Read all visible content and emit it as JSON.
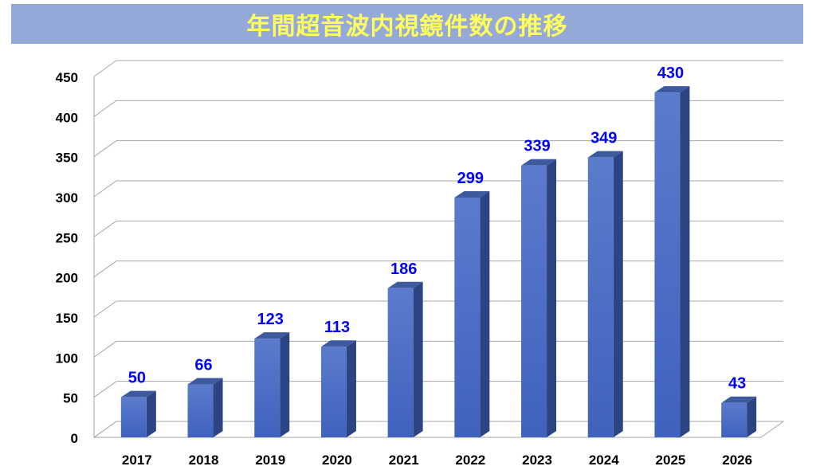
{
  "chart_data": {
    "type": "bar",
    "title": "年間超音波内視鏡件数の推移",
    "categories": [
      "2017",
      "2018",
      "2019",
      "2020",
      "2021",
      "2022",
      "2023",
      "2024",
      "2025",
      "2026"
    ],
    "values": [
      50,
      66,
      123,
      113,
      186,
      299,
      339,
      349,
      430,
      43
    ],
    "xlabel": "",
    "ylabel": "",
    "ylim": [
      0,
      450
    ],
    "yticks": [
      0,
      50,
      100,
      150,
      200,
      250,
      300,
      350,
      400,
      450
    ],
    "grid": true,
    "legend": "none",
    "colors": {
      "bar_front": "#4a6cc4",
      "bar_side": "#2c4482",
      "bar_top": "#3e5a9e",
      "label": "#0000ff",
      "grid": "#a6a6a6",
      "title_bg": "#95a9d8",
      "title_text": "#ffff5e"
    }
  }
}
